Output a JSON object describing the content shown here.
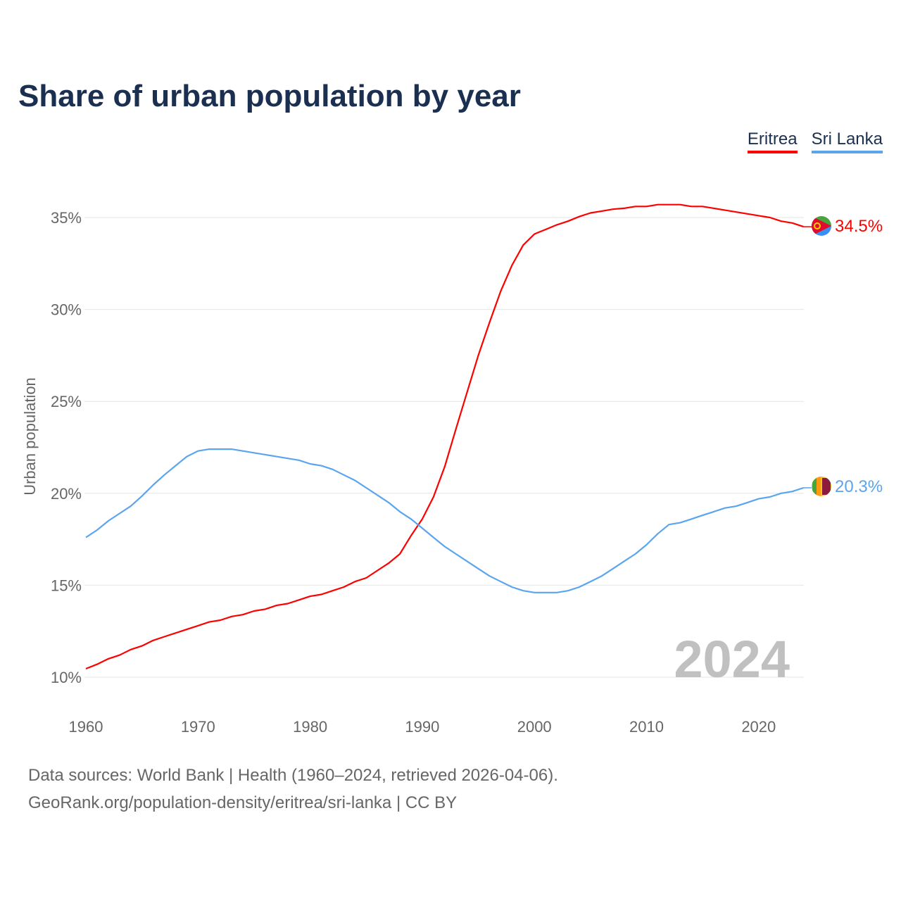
{
  "title": "Share of urban population by year",
  "footer": {
    "line1": "Data sources: World Bank | Health (1960–2024, retrieved 2026-04-06).",
    "line2": "GeoRank.org/population-density/eritrea/sri-lanka | CC BY"
  },
  "chart_data": {
    "type": "line",
    "title": "Share of urban population by year",
    "ylabel": "Urban population",
    "xlabel": "",
    "year_watermark": "2024",
    "xlim": [
      1960,
      2024
    ],
    "ylim": [
      10,
      36
    ],
    "x_ticks": [
      1960,
      1970,
      1980,
      1990,
      2000,
      2010,
      2020
    ],
    "y_ticks": [
      {
        "v": 10,
        "label": "10%"
      },
      {
        "v": 15,
        "label": "15%"
      },
      {
        "v": 20,
        "label": "20%"
      },
      {
        "v": 25,
        "label": "25%"
      },
      {
        "v": 30,
        "label": "30%"
      },
      {
        "v": 35,
        "label": "35%"
      }
    ],
    "legend_position": "top-right",
    "x_start": 1960,
    "series": [
      {
        "name": "Eritrea",
        "color": "#ff0000",
        "end_label": "34.5%",
        "flag": "eritrea-flag",
        "values": [
          10.46,
          10.7,
          11.0,
          11.2,
          11.5,
          11.7,
          12.0,
          12.2,
          12.4,
          12.6,
          12.8,
          13.0,
          13.1,
          13.3,
          13.4,
          13.6,
          13.7,
          13.9,
          14.0,
          14.2,
          14.4,
          14.5,
          14.7,
          14.9,
          15.2,
          15.4,
          15.8,
          16.2,
          16.7,
          17.7,
          18.6,
          19.8,
          21.45,
          23.5,
          25.5,
          27.5,
          29.3,
          31.0,
          32.4,
          33.5,
          34.1,
          34.35,
          34.6,
          34.8,
          35.05,
          35.25,
          35.35,
          35.45,
          35.5,
          35.6,
          35.6,
          35.7,
          35.7,
          35.7,
          35.6,
          35.6,
          35.5,
          35.4,
          35.3,
          35.2,
          35.1,
          35.0,
          34.8,
          34.7,
          34.5
        ]
      },
      {
        "name": "Sri Lanka",
        "color": "#5aa5ee",
        "end_label": "20.3%",
        "flag": "sri-lanka-flag",
        "values": [
          17.6,
          18.0,
          18.5,
          18.9,
          19.3,
          19.85,
          20.45,
          21.0,
          21.5,
          22.0,
          22.3,
          22.4,
          22.4,
          22.4,
          22.3,
          22.2,
          22.1,
          22.0,
          21.9,
          21.8,
          21.6,
          21.5,
          21.3,
          21.0,
          20.7,
          20.3,
          19.9,
          19.5,
          19.0,
          18.6,
          18.1,
          17.6,
          17.1,
          16.7,
          16.3,
          15.9,
          15.5,
          15.2,
          14.9,
          14.7,
          14.6,
          14.6,
          14.6,
          14.7,
          14.9,
          15.2,
          15.5,
          15.9,
          16.3,
          16.7,
          17.2,
          17.8,
          18.3,
          18.4,
          18.6,
          18.8,
          19.0,
          19.2,
          19.3,
          19.5,
          19.7,
          19.8,
          20.0,
          20.1,
          20.3
        ]
      }
    ]
  }
}
